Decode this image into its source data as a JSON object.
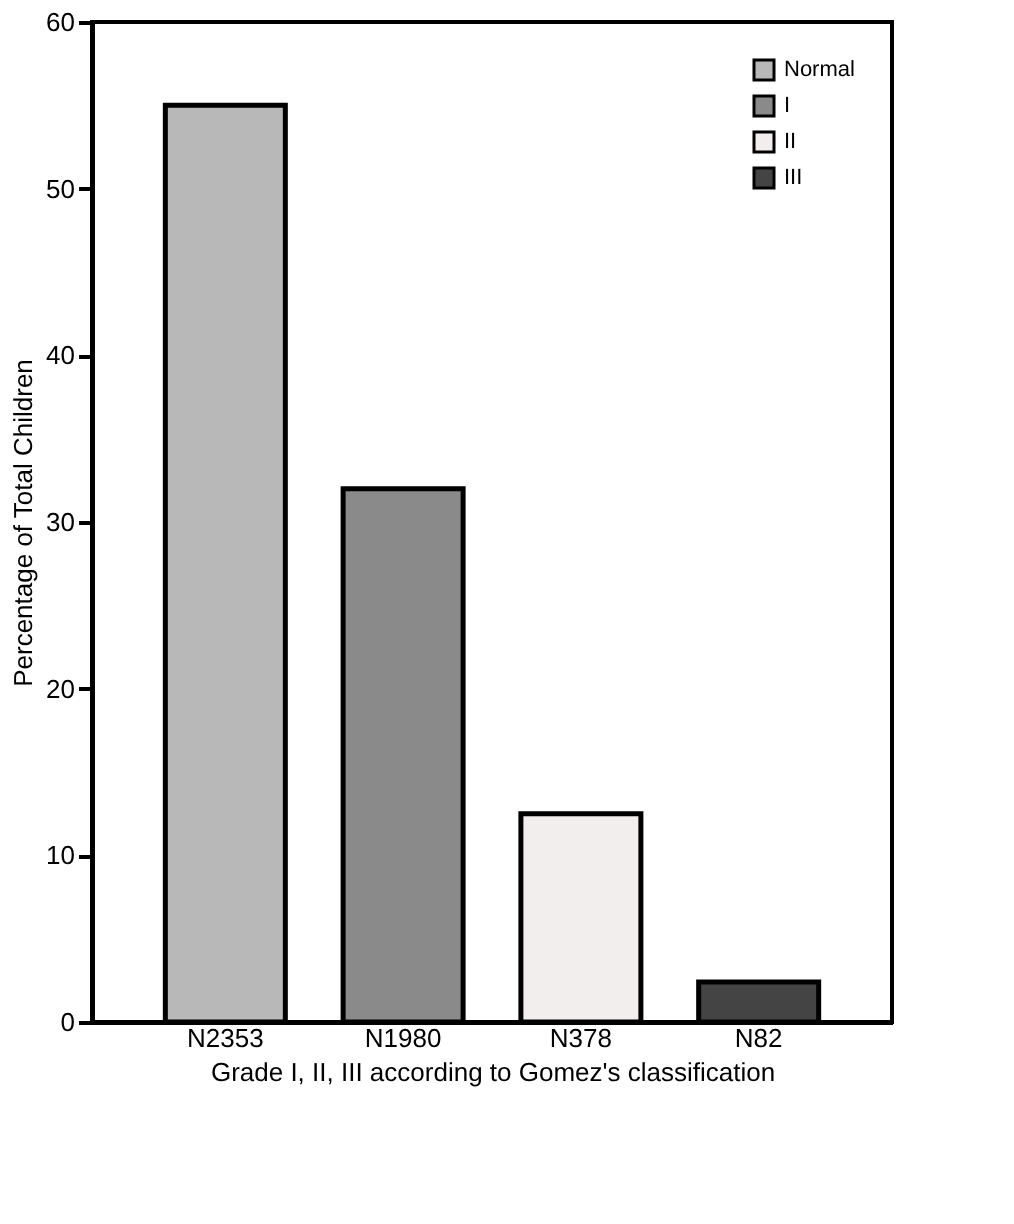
{
  "chart_data": {
    "type": "bar",
    "xlabel": "Grade I, II, III according to Gomez's classification",
    "ylabel": "Percentage of Total Children",
    "categories": [
      "N2353",
      "N1980",
      "N378",
      "N82"
    ],
    "series": [
      {
        "name": "Normal",
        "color": "#b8b8b8",
        "values": [
          55,
          null,
          null,
          null
        ]
      },
      {
        "name": "I",
        "color": "#8a8a8a",
        "values": [
          null,
          32,
          null,
          null
        ]
      },
      {
        "name": "II",
        "color": "#f2eeee",
        "values": [
          null,
          null,
          12.5,
          null
        ]
      },
      {
        "name": "III",
        "color": "#444444",
        "values": [
          null,
          null,
          null,
          2.4
        ]
      }
    ],
    "ylim": [
      0,
      60
    ],
    "yticks": [
      0,
      10,
      20,
      30,
      40,
      50,
      60
    ],
    "grid": false,
    "legend": "top right"
  }
}
